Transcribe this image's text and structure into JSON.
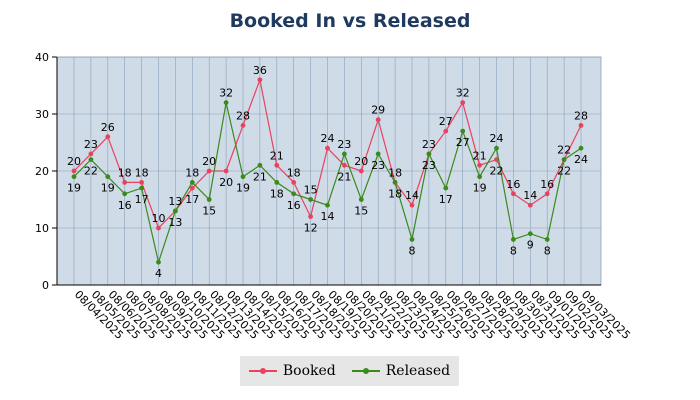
{
  "chart_data": {
    "type": "line",
    "title": "Booked In vs Released",
    "categories": [
      "08/04/2025",
      "08/05/2025",
      "08/06/2025",
      "08/07/2025",
      "08/08/2025",
      "08/09/2025",
      "08/10/2025",
      "08/11/2025",
      "08/12/2025",
      "08/13/2025",
      "08/14/2025",
      "08/15/2025",
      "08/16/2025",
      "08/17/2025",
      "08/18/2025",
      "08/19/2025",
      "08/20/2025",
      "08/21/2025",
      "08/22/2025",
      "08/23/2025",
      "08/24/2025",
      "08/25/2025",
      "08/26/2025",
      "08/27/2025",
      "08/28/2025",
      "08/29/2025",
      "08/30/2025",
      "08/31/2025",
      "09/01/2025",
      "09/02/2025",
      "09/03/2025"
    ],
    "series": [
      {
        "name": "Booked",
        "color": "#e8425f",
        "values": [
          20,
          23,
          26,
          18,
          18,
          10,
          13,
          17,
          20,
          20,
          28,
          36,
          21,
          18,
          12,
          24,
          21,
          20,
          29,
          18,
          14,
          23,
          27,
          32,
          21,
          22,
          16,
          14,
          16,
          22,
          28
        ]
      },
      {
        "name": "Released",
        "color": "#3a8a1c",
        "values": [
          19,
          22,
          19,
          16,
          17,
          4,
          13,
          18,
          15,
          32,
          19,
          21,
          18,
          16,
          15,
          14,
          23,
          15,
          23,
          18,
          8,
          23,
          17,
          27,
          19,
          24,
          8,
          9,
          8,
          22,
          24
        ]
      }
    ],
    "y_ticks": [
      0,
      10,
      20,
      30,
      40
    ],
    "ylim": [
      0,
      40
    ],
    "grid": true,
    "legend_position": "bottom-center",
    "plot_background": "#d0dbe8",
    "grid_color": "#8aa0b8"
  }
}
